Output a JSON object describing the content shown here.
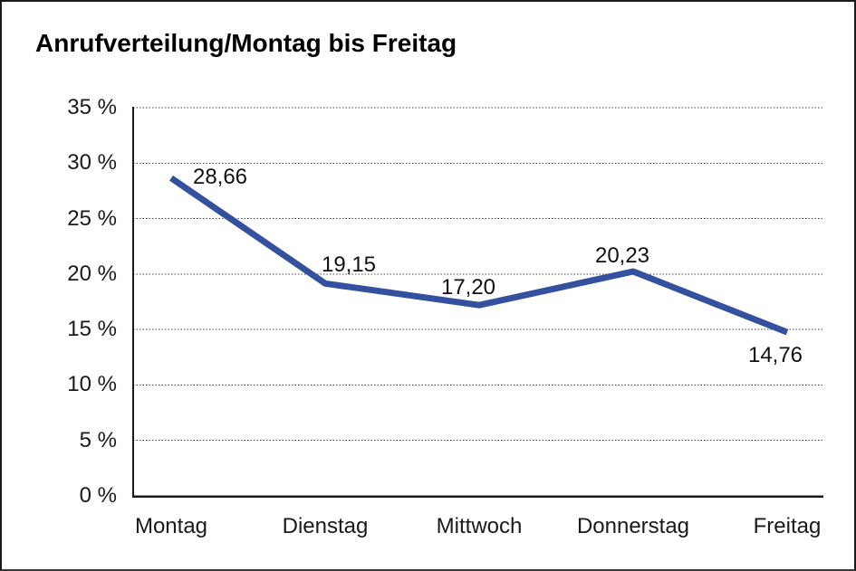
{
  "window": {
    "title": "Anrufverteilung/Montag bis Freitag"
  },
  "chart_data": {
    "type": "line",
    "title": "Anrufverteilung/Montag bis Freitag",
    "categories": [
      "Montag",
      "Dienstag",
      "Mittwoch",
      "Donnerstag",
      "Freitag"
    ],
    "series": [
      {
        "name": "Anrufverteilung",
        "values": [
          28.66,
          19.15,
          17.2,
          20.23,
          14.76
        ]
      }
    ],
    "point_labels": [
      "28,66",
      "19,15",
      "17,20",
      "20,23",
      "14,76"
    ],
    "y_ticks": [
      "35 %",
      "30 %",
      "25 %",
      "20 %",
      "15 %",
      "10 %",
      "5 %",
      "0 %"
    ],
    "y_tick_values": [
      35,
      30,
      25,
      20,
      15,
      10,
      5,
      0
    ],
    "ylim": [
      0,
      35
    ],
    "xlabel": "",
    "ylabel": "",
    "legend": "none",
    "grid": "horizontal-dotted",
    "line_color": "#34519f",
    "axis_color": "#1a1a1a",
    "gridline_color": "#454545"
  }
}
